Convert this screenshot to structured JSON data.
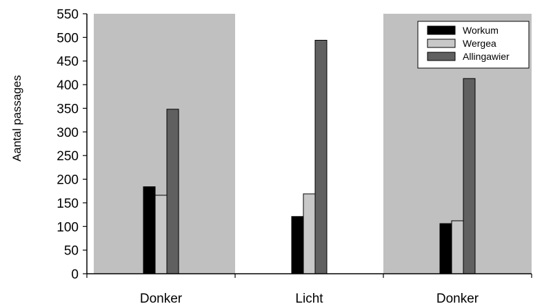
{
  "chart_data": {
    "type": "bar",
    "title": "",
    "xlabel": "",
    "ylabel": "Aantal passages",
    "categories": [
      "Donker",
      "Licht",
      "Donker"
    ],
    "category_shading": [
      "#c0c0c0",
      "#ffffff",
      "#c0c0c0"
    ],
    "series": [
      {
        "name": "Workum",
        "color": "#000000",
        "values": [
          184,
          121,
          106
        ]
      },
      {
        "name": "Wergea",
        "color": "#c8c8c8",
        "values": [
          166,
          169,
          112
        ]
      },
      {
        "name": "Allingawier",
        "color": "#606060",
        "values": [
          348,
          494,
          413
        ]
      }
    ],
    "ylim": [
      0,
      550
    ],
    "yticks": [
      "0",
      "50",
      "100",
      "150",
      "200",
      "250",
      "300",
      "350",
      "400",
      "450",
      "500",
      "550"
    ],
    "legend_position": "top-right",
    "grid": false
  }
}
